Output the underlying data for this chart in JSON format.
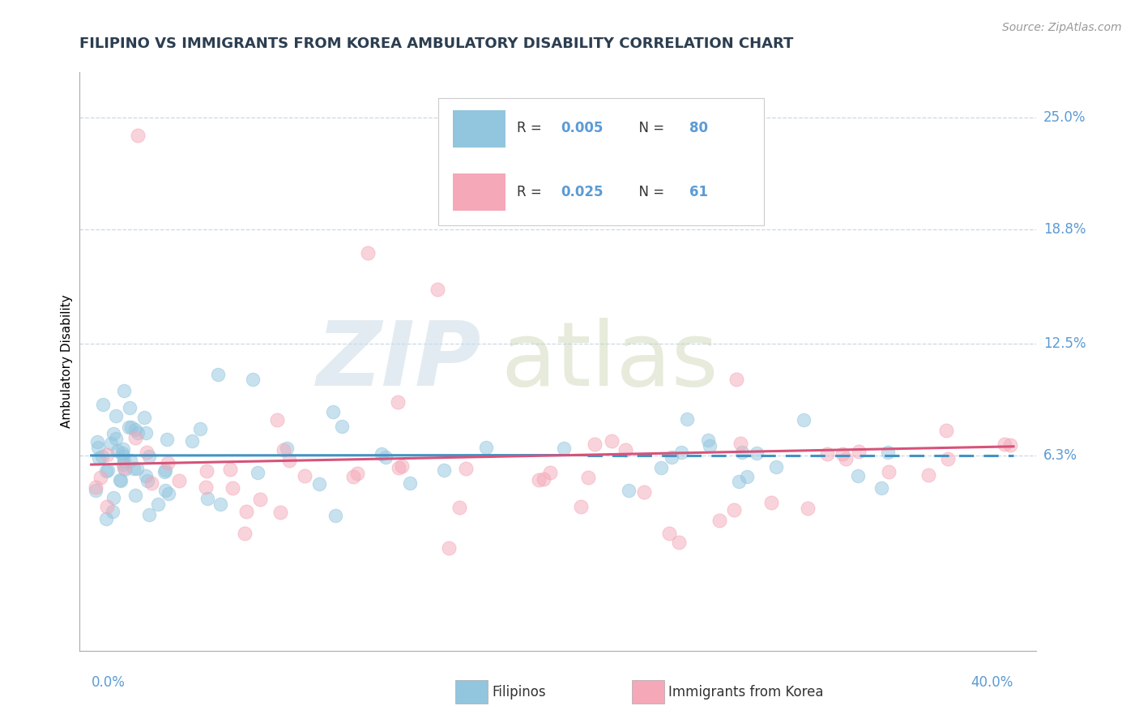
{
  "title": "FILIPINO VS IMMIGRANTS FROM KOREA AMBULATORY DISABILITY CORRELATION CHART",
  "source": "Source: ZipAtlas.com",
  "ylabel": "Ambulatory Disability",
  "ytick_labels": [
    "25.0%",
    "18.8%",
    "12.5%",
    "6.3%"
  ],
  "ytick_values": [
    0.25,
    0.188,
    0.125,
    0.063
  ],
  "xlim": [
    0.0,
    0.4
  ],
  "ylim": [
    -0.045,
    0.275
  ],
  "legend_r1": "R = 0.005",
  "legend_n1": "N = 80",
  "legend_r2": "R = 0.025",
  "legend_n2": "N = 61",
  "blue_color": "#92c5de",
  "pink_color": "#f4a8b8",
  "blue_edge_color": "#5ba3cc",
  "pink_edge_color": "#e87090",
  "blue_line_color": "#4393c3",
  "pink_line_color": "#d6537a",
  "label_color": "#5b9bd5",
  "grid_color": "#c8d8e8",
  "text_color": "#2c3e50",
  "source_color": "#999999"
}
